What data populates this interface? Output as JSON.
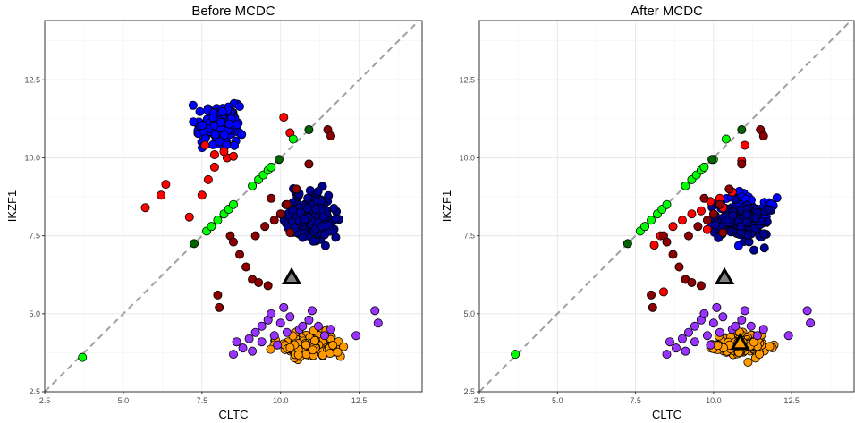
{
  "chart_data": [
    {
      "type": "scatter",
      "title": "Before MCDC",
      "xlabel": "CLTC",
      "ylabel": "IKZF1",
      "xlim": [
        2.5,
        14.5
      ],
      "ylim": [
        2.5,
        14.4
      ],
      "xticks": [
        "2.5",
        "5.0",
        "7.5",
        "10.0",
        "12.5"
      ],
      "yticks": [
        "2.5",
        "5.0",
        "7.5",
        "10.0",
        "12.5"
      ],
      "grid": true,
      "reference_line": {
        "slope": 1,
        "intercept": 0,
        "style": "dashed",
        "color": "#a0a0a0"
      },
      "series": [
        {
          "color": "#0000ff",
          "cluster": {
            "center": [
              8.0,
              11.1
            ],
            "spread": [
              0.35,
              0.3
            ],
            "n": 140
          }
        },
        {
          "color": "#000090",
          "cluster": {
            "center": [
              10.95,
              8.1
            ],
            "spread": [
              0.4,
              0.35
            ],
            "n": 170
          }
        },
        {
          "color": "#ff9900",
          "cluster": {
            "center": [
              10.95,
              4.0
            ],
            "spread": [
              0.45,
              0.18
            ],
            "n": 170
          }
        },
        {
          "color": "#9933ff",
          "points": [
            [
              8.6,
              4.1
            ],
            [
              8.8,
              3.9
            ],
            [
              9.0,
              4.2
            ],
            [
              9.2,
              4.4
            ],
            [
              9.4,
              4.6
            ],
            [
              9.6,
              4.8
            ],
            [
              9.8,
              4.3
            ],
            [
              10.0,
              4.7
            ],
            [
              10.3,
              4.9
            ],
            [
              10.6,
              4.5
            ],
            [
              10.9,
              4.8
            ],
            [
              11.2,
              4.6
            ],
            [
              11.4,
              4.3
            ],
            [
              9.1,
              3.8
            ],
            [
              8.5,
              3.7
            ],
            [
              9.7,
              5.0
            ],
            [
              10.1,
              5.2
            ],
            [
              11.0,
              5.1
            ],
            [
              11.6,
              4.5
            ],
            [
              12.4,
              4.3
            ],
            [
              13.0,
              5.1
            ],
            [
              13.1,
              4.7
            ],
            [
              9.4,
              4.1
            ],
            [
              10.2,
              4.4
            ],
            [
              10.7,
              4.6
            ],
            [
              9.9,
              4.0
            ]
          ]
        },
        {
          "color": "#ff0000",
          "points": [
            [
              5.7,
              8.4
            ],
            [
              6.2,
              8.8
            ],
            [
              6.35,
              9.15
            ],
            [
              7.1,
              8.1
            ],
            [
              7.5,
              8.8
            ],
            [
              7.7,
              9.3
            ],
            [
              7.9,
              9.7
            ],
            [
              7.6,
              10.4
            ],
            [
              7.9,
              10.1
            ],
            [
              8.3,
              10.0
            ],
            [
              8.5,
              10.05
            ],
            [
              8.2,
              10.2
            ],
            [
              10.1,
              11.3
            ],
            [
              10.3,
              10.8
            ]
          ]
        },
        {
          "color": "#8b0000",
          "points": [
            [
              8.0,
              5.6
            ],
            [
              8.05,
              5.2
            ],
            [
              8.4,
              7.5
            ],
            [
              8.5,
              7.3
            ],
            [
              8.7,
              6.9
            ],
            [
              8.9,
              6.5
            ],
            [
              9.1,
              6.1
            ],
            [
              9.3,
              6.0
            ],
            [
              9.6,
              5.9
            ],
            [
              9.2,
              7.5
            ],
            [
              9.5,
              7.8
            ],
            [
              9.8,
              8.0
            ],
            [
              10.0,
              8.2
            ],
            [
              10.2,
              8.5
            ],
            [
              10.5,
              9.0
            ],
            [
              10.9,
              9.8
            ],
            [
              11.5,
              10.9
            ],
            [
              11.6,
              10.7
            ],
            [
              10.3,
              7.6
            ],
            [
              9.7,
              8.7
            ]
          ]
        },
        {
          "color": "#00ff00",
          "points": [
            [
              3.7,
              3.6
            ],
            [
              7.65,
              7.65
            ],
            [
              7.8,
              7.8
            ],
            [
              8.0,
              8.0
            ],
            [
              8.2,
              8.2
            ],
            [
              8.35,
              8.35
            ],
            [
              8.5,
              8.5
            ],
            [
              9.1,
              9.1
            ],
            [
              9.3,
              9.3
            ],
            [
              9.45,
              9.45
            ],
            [
              9.6,
              9.6
            ],
            [
              9.7,
              9.7
            ],
            [
              10.4,
              10.6
            ]
          ]
        },
        {
          "color": "#006400",
          "points": [
            [
              7.25,
              7.25
            ],
            [
              9.95,
              9.95
            ],
            [
              10.9,
              10.9
            ]
          ]
        }
      ],
      "markers": [
        {
          "shape": "triangle",
          "x": 10.35,
          "y": 6.15,
          "fill": "#808080"
        }
      ]
    },
    {
      "type": "scatter",
      "title": "After MCDC",
      "xlabel": "CLTC",
      "ylabel": "IKZF1",
      "xlim": [
        2.5,
        14.5
      ],
      "ylim": [
        2.5,
        14.4
      ],
      "xticks": [
        "2.5",
        "5.0",
        "7.5",
        "10.0",
        "12.5"
      ],
      "yticks": [
        "2.5",
        "5.0",
        "7.5",
        "10.0",
        "12.5"
      ],
      "grid": true,
      "reference_line": {
        "slope": 1,
        "intercept": 0,
        "style": "dashed",
        "color": "#a0a0a0"
      },
      "series": [
        {
          "color": "#0000ff",
          "cluster": {
            "center": [
              11.0,
              8.1
            ],
            "spread": [
              0.35,
              0.38
            ],
            "n": 140
          }
        },
        {
          "color": "#000090",
          "cluster": {
            "center": [
              10.9,
              7.95
            ],
            "spread": [
              0.4,
              0.3
            ],
            "n": 110
          }
        },
        {
          "color": "#ff9900",
          "cluster": {
            "center": [
              10.95,
              4.0
            ],
            "spread": [
              0.45,
              0.18
            ],
            "n": 170
          }
        },
        {
          "color": "#9933ff",
          "points": [
            [
              8.6,
              4.1
            ],
            [
              8.8,
              3.9
            ],
            [
              9.0,
              4.2
            ],
            [
              9.2,
              4.4
            ],
            [
              9.4,
              4.6
            ],
            [
              9.6,
              4.8
            ],
            [
              9.8,
              4.3
            ],
            [
              10.0,
              4.7
            ],
            [
              10.3,
              4.9
            ],
            [
              10.6,
              4.5
            ],
            [
              10.9,
              4.8
            ],
            [
              11.2,
              4.6
            ],
            [
              11.4,
              4.3
            ],
            [
              9.1,
              3.8
            ],
            [
              8.5,
              3.7
            ],
            [
              9.7,
              5.0
            ],
            [
              10.1,
              5.2
            ],
            [
              11.0,
              5.1
            ],
            [
              11.6,
              4.5
            ],
            [
              12.4,
              4.3
            ],
            [
              13.0,
              5.1
            ],
            [
              13.1,
              4.7
            ],
            [
              9.4,
              4.1
            ],
            [
              10.2,
              4.4
            ],
            [
              10.7,
              4.6
            ],
            [
              9.9,
              4.0
            ]
          ]
        },
        {
          "color": "#ff0000",
          "points": [
            [
              8.1,
              7.2
            ],
            [
              8.4,
              5.7
            ],
            [
              8.3,
              7.5
            ],
            [
              8.7,
              7.8
            ],
            [
              9.0,
              8.0
            ],
            [
              9.3,
              8.2
            ],
            [
              9.6,
              8.3
            ],
            [
              9.9,
              8.6
            ],
            [
              10.2,
              8.7
            ],
            [
              10.6,
              8.9
            ],
            [
              10.3,
              8.4
            ],
            [
              11.0,
              10.4
            ],
            [
              10.9,
              9.9
            ],
            [
              9.8,
              7.7
            ]
          ]
        },
        {
          "color": "#8b0000",
          "points": [
            [
              8.0,
              5.6
            ],
            [
              8.05,
              5.2
            ],
            [
              8.4,
              7.5
            ],
            [
              8.5,
              7.3
            ],
            [
              8.7,
              6.9
            ],
            [
              8.9,
              6.5
            ],
            [
              9.1,
              6.1
            ],
            [
              9.3,
              6.0
            ],
            [
              9.6,
              5.9
            ],
            [
              9.2,
              7.5
            ],
            [
              9.5,
              7.8
            ],
            [
              9.8,
              8.0
            ],
            [
              10.0,
              8.2
            ],
            [
              10.2,
              8.5
            ],
            [
              10.5,
              9.0
            ],
            [
              10.9,
              9.8
            ],
            [
              11.5,
              10.9
            ],
            [
              11.6,
              10.7
            ],
            [
              10.3,
              7.6
            ],
            [
              9.7,
              8.7
            ]
          ]
        },
        {
          "color": "#00ff00",
          "points": [
            [
              3.65,
              3.7
            ],
            [
              7.65,
              7.65
            ],
            [
              7.8,
              7.8
            ],
            [
              8.0,
              8.0
            ],
            [
              8.2,
              8.2
            ],
            [
              8.35,
              8.35
            ],
            [
              8.5,
              8.5
            ],
            [
              9.1,
              9.1
            ],
            [
              9.3,
              9.3
            ],
            [
              9.45,
              9.45
            ],
            [
              9.6,
              9.6
            ],
            [
              9.7,
              9.7
            ],
            [
              10.0,
              9.95
            ],
            [
              10.4,
              10.6
            ]
          ]
        },
        {
          "color": "#006400",
          "points": [
            [
              7.25,
              7.25
            ],
            [
              9.95,
              9.95
            ],
            [
              10.9,
              10.9
            ]
          ]
        }
      ],
      "markers": [
        {
          "shape": "triangle",
          "x": 10.35,
          "y": 6.15,
          "fill": "#808080"
        },
        {
          "shape": "triangle",
          "x": 10.85,
          "y": 4.05,
          "fill": "#ff9900"
        }
      ]
    }
  ]
}
